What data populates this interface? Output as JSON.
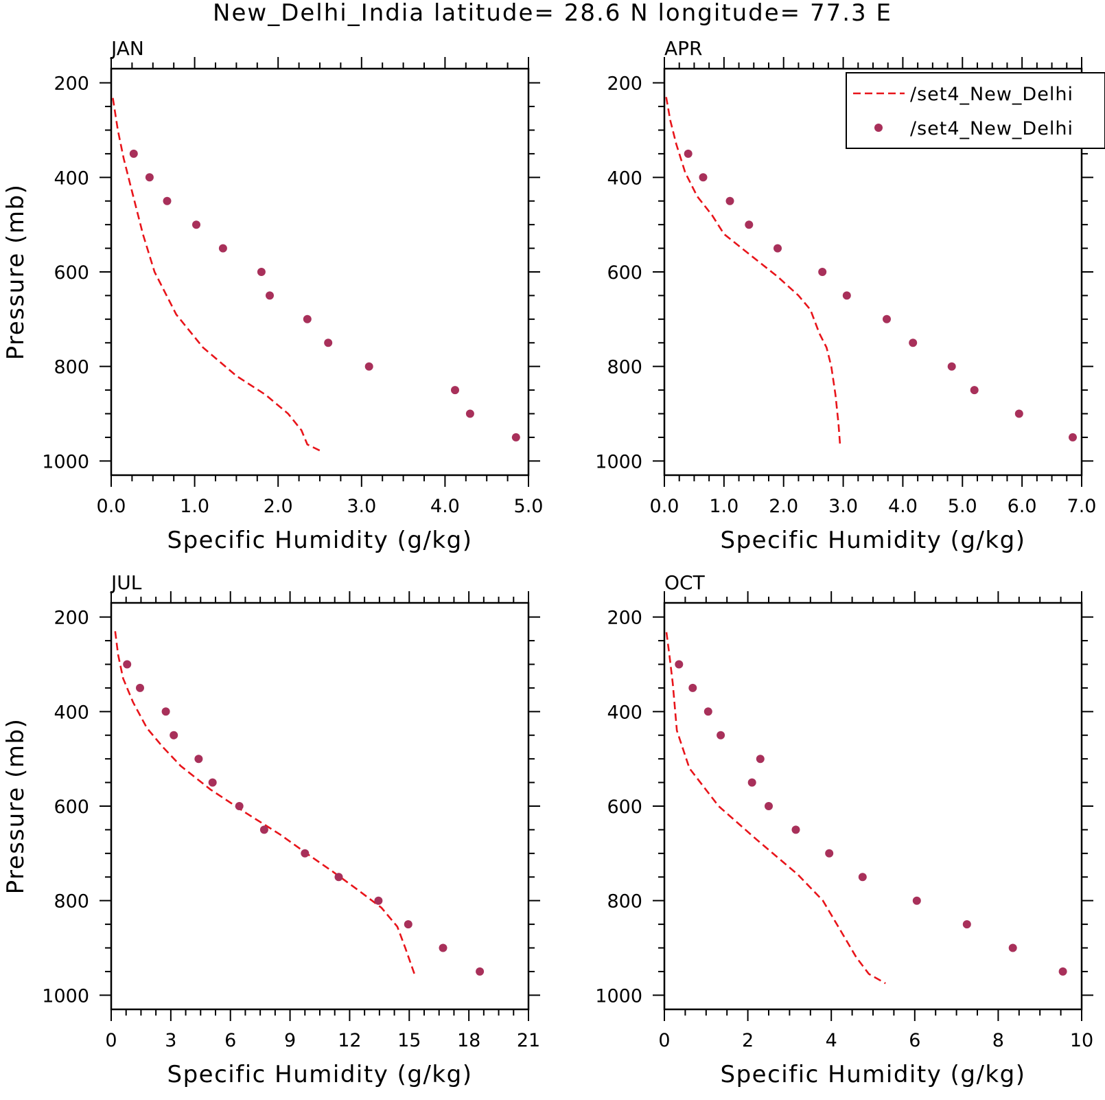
{
  "figure": {
    "title": "New_Delhi_India  latitude= 28.6 N longitude= 77.3 E"
  },
  "colors": {
    "model_line": "#e8141a",
    "obs_marker": "#a8305a",
    "axes": "#000000"
  },
  "legend": {
    "placement": "top-right of APR panel",
    "entries": [
      {
        "label": "/set4_New_Delhi",
        "symbol": "dashed-line"
      },
      {
        "label": "/set4_New_Delhi",
        "symbol": "dot-marker"
      }
    ]
  },
  "chart_data": [
    {
      "type": "line+scatter",
      "panel": "JAN",
      "xlabel": "Specific Humidity (g/kg)",
      "ylabel": "Pressure (mb)",
      "xlim": [
        0,
        5
      ],
      "ylim": [
        1000,
        200
      ],
      "y_inverted": true,
      "xticks": [
        "0.0",
        "1.0",
        "2.0",
        "3.0",
        "4.0",
        "5.0"
      ],
      "yticks": [
        "200",
        "400",
        "600",
        "800",
        "1000"
      ],
      "series": [
        {
          "kind": "dashed-line",
          "points": [
            [
              0.02,
              232
            ],
            [
              0.08,
              300
            ],
            [
              0.15,
              360
            ],
            [
              0.25,
              430
            ],
            [
              0.38,
              520
            ],
            [
              0.52,
              600
            ],
            [
              0.78,
              690
            ],
            [
              1.1,
              760
            ],
            [
              1.5,
              820
            ],
            [
              1.85,
              860
            ],
            [
              2.12,
              900
            ],
            [
              2.28,
              935
            ],
            [
              2.35,
              965
            ],
            [
              2.5,
              978
            ]
          ]
        },
        {
          "kind": "scatter",
          "points": [
            [
              0.27,
              350
            ],
            [
              0.46,
              400
            ],
            [
              0.67,
              450
            ],
            [
              1.02,
              500
            ],
            [
              1.34,
              550
            ],
            [
              1.8,
              600
            ],
            [
              1.9,
              650
            ],
            [
              2.35,
              700
            ],
            [
              2.6,
              750
            ],
            [
              3.09,
              800
            ],
            [
              4.12,
              850
            ],
            [
              4.3,
              900
            ],
            [
              4.85,
              950
            ]
          ]
        }
      ]
    },
    {
      "type": "line+scatter",
      "panel": "APR",
      "xlabel": "Specific Humidity (g/kg)",
      "ylabel": "",
      "xlim": [
        0,
        7
      ],
      "ylim": [
        1000,
        200
      ],
      "y_inverted": true,
      "xticks": [
        "0.0",
        "1.0",
        "2.0",
        "3.0",
        "4.0",
        "5.0",
        "6.0",
        "7.0"
      ],
      "yticks": [
        "200",
        "400",
        "600",
        "800",
        "1000"
      ],
      "series": [
        {
          "kind": "dashed-line",
          "points": [
            [
              0.03,
              230
            ],
            [
              0.1,
              280
            ],
            [
              0.2,
              330
            ],
            [
              0.35,
              390
            ],
            [
              0.55,
              440
            ],
            [
              0.8,
              480
            ],
            [
              1.0,
              520
            ],
            [
              1.4,
              560
            ],
            [
              1.9,
              610
            ],
            [
              2.25,
              650
            ],
            [
              2.45,
              680
            ],
            [
              2.6,
              730
            ],
            [
              2.72,
              760
            ],
            [
              2.8,
              800
            ],
            [
              2.87,
              860
            ],
            [
              2.92,
              920
            ],
            [
              2.95,
              970
            ]
          ]
        },
        {
          "kind": "scatter",
          "points": [
            [
              0.4,
              350
            ],
            [
              0.65,
              400
            ],
            [
              1.1,
              450
            ],
            [
              1.42,
              500
            ],
            [
              1.9,
              550
            ],
            [
              2.65,
              600
            ],
            [
              3.06,
              650
            ],
            [
              3.73,
              700
            ],
            [
              4.17,
              750
            ],
            [
              4.82,
              800
            ],
            [
              5.2,
              850
            ],
            [
              5.95,
              900
            ],
            [
              6.85,
              950
            ]
          ]
        }
      ]
    },
    {
      "type": "line+scatter",
      "panel": "JUL",
      "xlabel": "Specific Humidity (g/kg)",
      "ylabel": "Pressure (mb)",
      "xlim": [
        0,
        21
      ],
      "ylim": [
        1000,
        200
      ],
      "y_inverted": true,
      "xticks": [
        "0",
        "3",
        "6",
        "9",
        "12",
        "15",
        "18",
        "21"
      ],
      "yticks": [
        "200",
        "400",
        "600",
        "800",
        "1000"
      ],
      "series": [
        {
          "kind": "dashed-line",
          "points": [
            [
              0.2,
              230
            ],
            [
              0.35,
              280
            ],
            [
              0.6,
              330
            ],
            [
              1.1,
              380
            ],
            [
              1.8,
              435
            ],
            [
              2.6,
              475
            ],
            [
              3.5,
              515
            ],
            [
              5.0,
              565
            ],
            [
              6.8,
              615
            ],
            [
              8.5,
              660
            ],
            [
              10.0,
              705
            ],
            [
              11.2,
              740
            ],
            [
              12.5,
              780
            ],
            [
              13.6,
              815
            ],
            [
              14.4,
              855
            ],
            [
              14.8,
              900
            ],
            [
              15.3,
              960
            ]
          ]
        },
        {
          "kind": "scatter",
          "points": [
            [
              0.8,
              300
            ],
            [
              1.45,
              350
            ],
            [
              2.75,
              400
            ],
            [
              3.15,
              450
            ],
            [
              4.4,
              500
            ],
            [
              5.1,
              550
            ],
            [
              6.45,
              600
            ],
            [
              7.7,
              650
            ],
            [
              9.75,
              700
            ],
            [
              11.45,
              750
            ],
            [
              13.45,
              800
            ],
            [
              14.95,
              850
            ],
            [
              16.7,
              900
            ],
            [
              18.55,
              950
            ]
          ]
        }
      ]
    },
    {
      "type": "line+scatter",
      "panel": "OCT",
      "xlabel": "Specific Humidity (g/kg)",
      "ylabel": "",
      "xlim": [
        0,
        10
      ],
      "ylim": [
        1000,
        200
      ],
      "y_inverted": true,
      "xticks": [
        "0",
        "2",
        "4",
        "6",
        "8",
        "10"
      ],
      "yticks": [
        "200",
        "400",
        "600",
        "800",
        "1000"
      ],
      "series": [
        {
          "kind": "dashed-line",
          "points": [
            [
              0.05,
              232
            ],
            [
              0.12,
              280
            ],
            [
              0.2,
              340
            ],
            [
              0.3,
              440
            ],
            [
              0.6,
              520
            ],
            [
              1.3,
              600
            ],
            [
              2.2,
              670
            ],
            [
              3.2,
              745
            ],
            [
              3.8,
              800
            ],
            [
              4.2,
              860
            ],
            [
              4.6,
              920
            ],
            [
              4.9,
              955
            ],
            [
              5.3,
              975
            ]
          ]
        },
        {
          "kind": "scatter",
          "points": [
            [
              0.35,
              300
            ],
            [
              0.68,
              350
            ],
            [
              1.05,
              400
            ],
            [
              1.35,
              450
            ],
            [
              2.3,
              500
            ],
            [
              2.1,
              550
            ],
            [
              2.5,
              600
            ],
            [
              3.15,
              650
            ],
            [
              3.95,
              700
            ],
            [
              4.75,
              750
            ],
            [
              6.05,
              800
            ],
            [
              7.25,
              850
            ],
            [
              8.35,
              900
            ],
            [
              9.55,
              950
            ]
          ]
        }
      ]
    }
  ]
}
